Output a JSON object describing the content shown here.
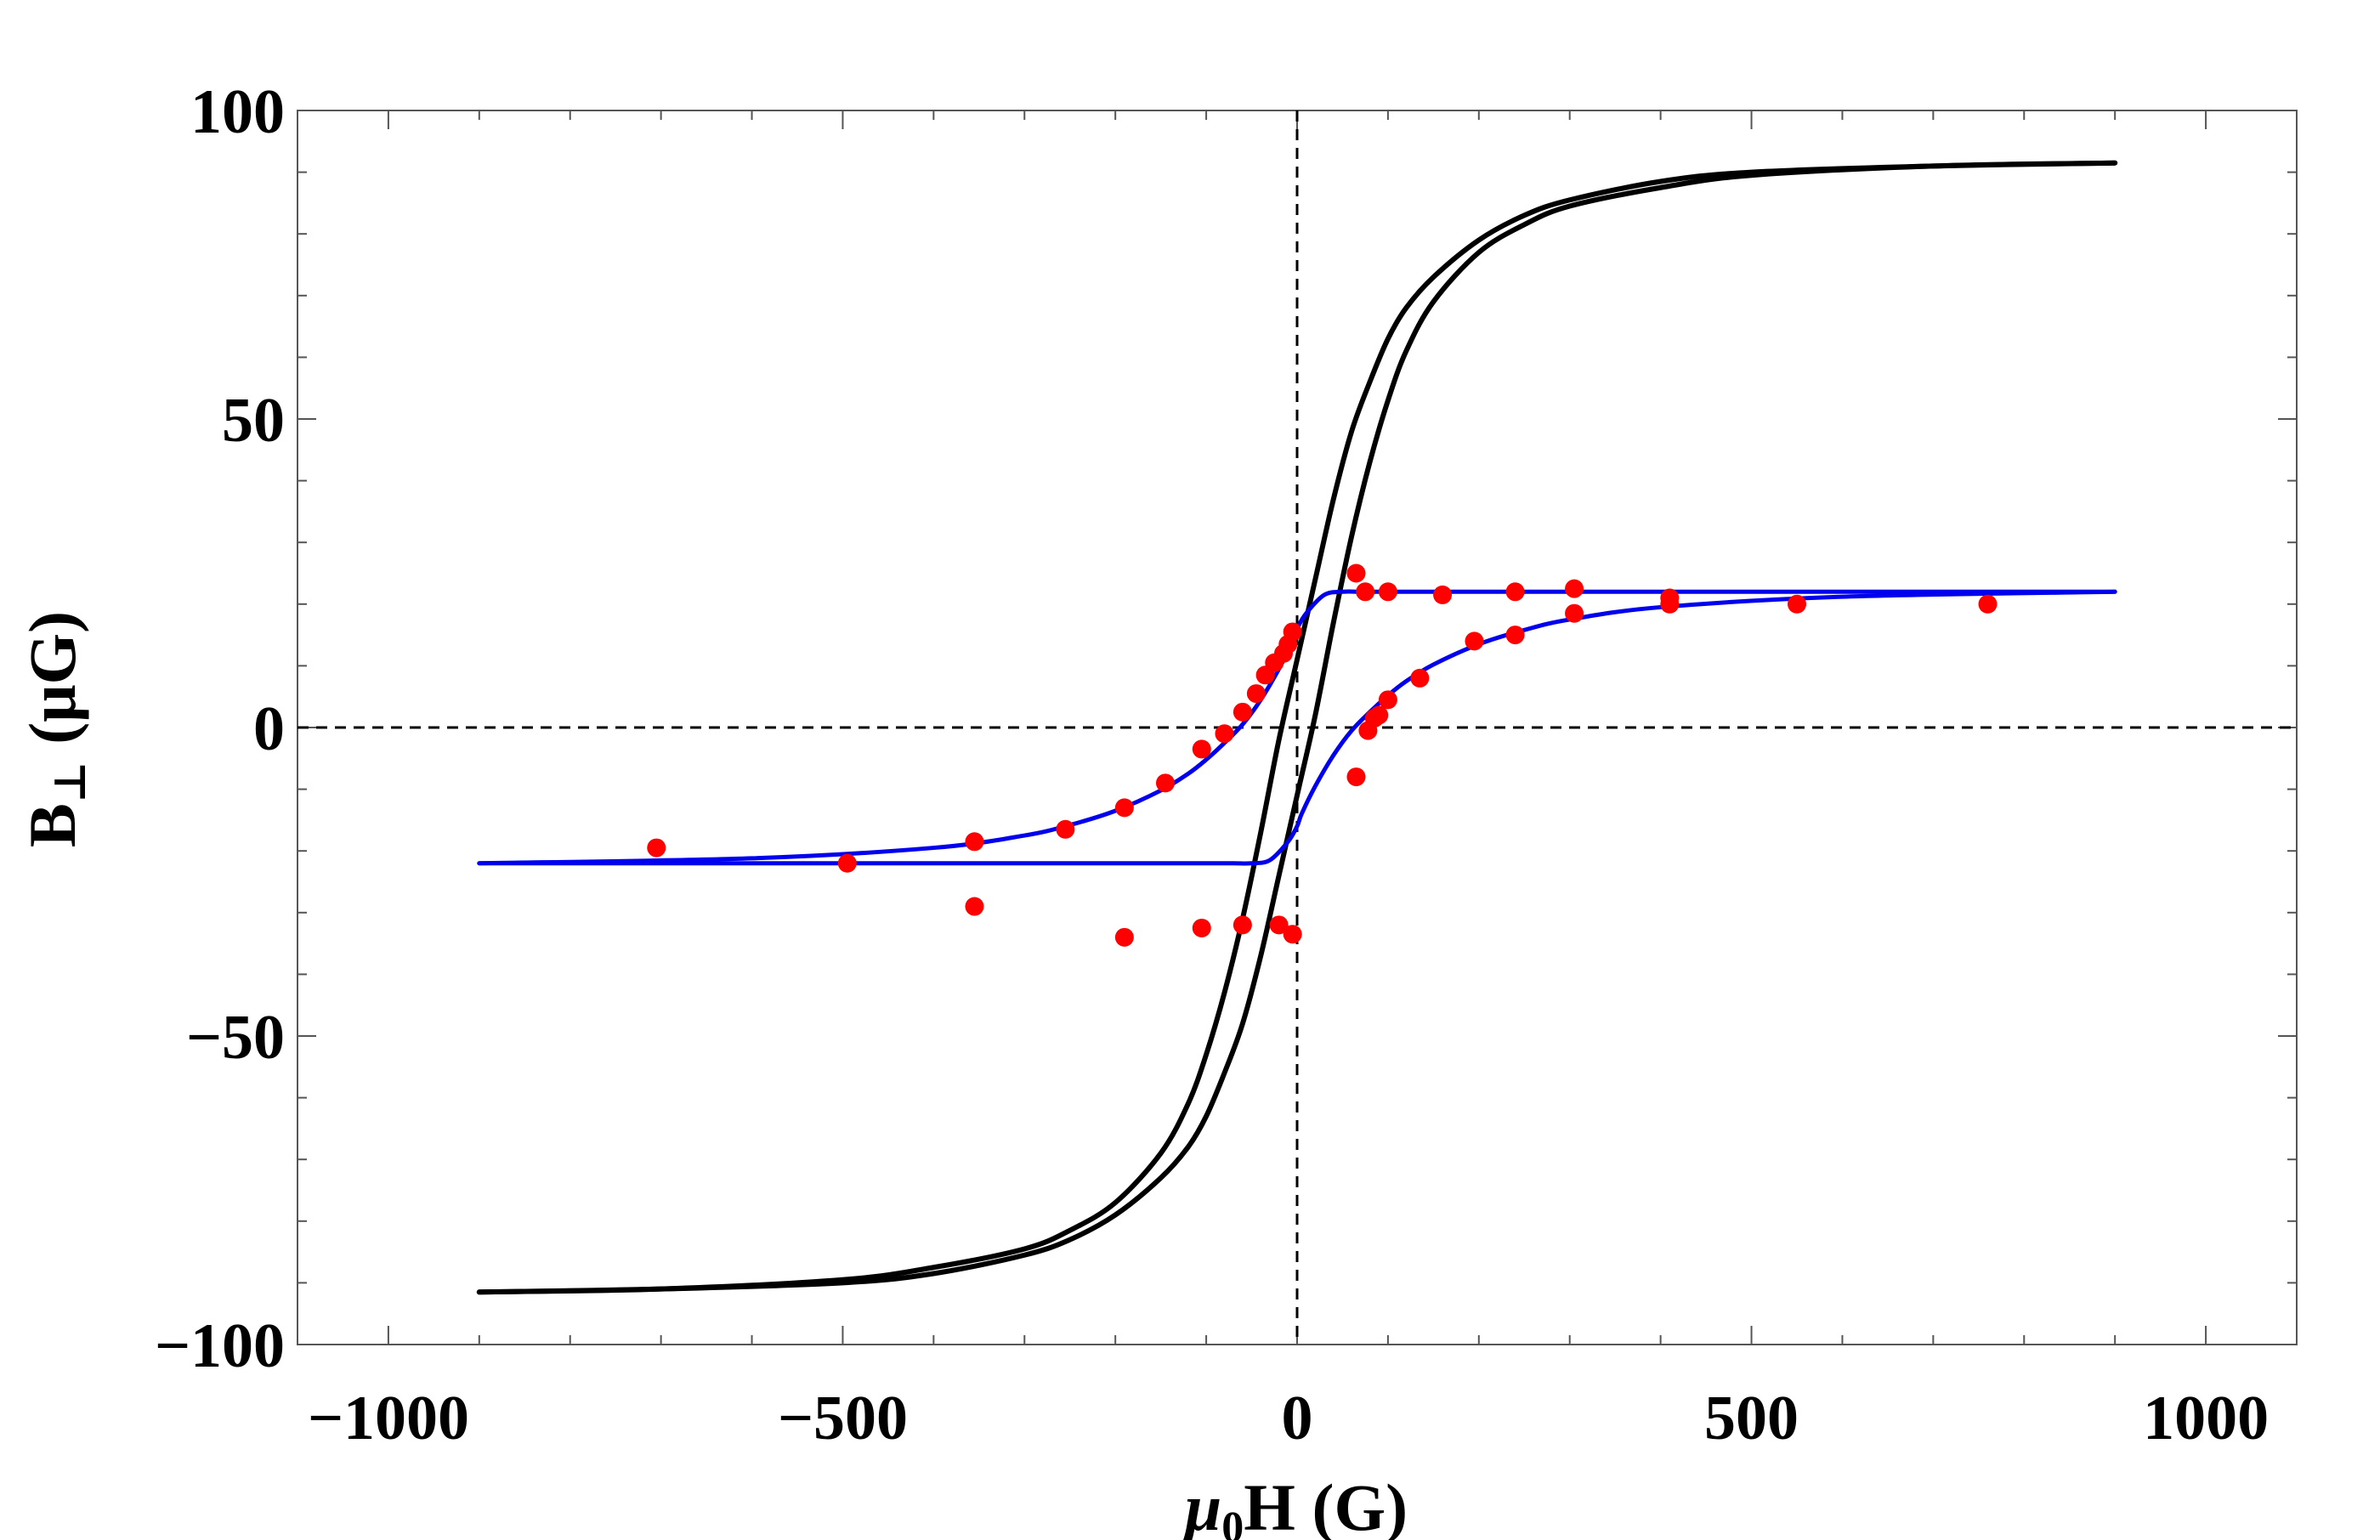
{
  "chart_data": {
    "type": "scatter",
    "title": "",
    "xlabel": {
      "prefix": "μ",
      "sub": "0",
      "suffix": "H (G)"
    },
    "ylabel": {
      "prefix": "B",
      "sub": "⊥",
      "suffix": " (μG)"
    },
    "xlim": [
      -1100,
      1100
    ],
    "ylim": [
      -100,
      100
    ],
    "x_ticks": [
      -1000,
      -500,
      0,
      500,
      1000
    ],
    "x_tick_labels": [
      "−1000",
      "−500",
      "0",
      "500",
      "1000"
    ],
    "y_ticks": [
      -100,
      -50,
      0,
      50,
      100
    ],
    "y_tick_labels": [
      "−100",
      "−50",
      "0",
      "50",
      "100"
    ],
    "reference_lines": {
      "x": 0,
      "y": 0,
      "style": "dashed"
    },
    "series": [
      {
        "name": "black loop (ascending branch)",
        "kind": "curve",
        "color": "#000000",
        "x": [
          -900,
          -700,
          -500,
          -400,
          -300,
          -250,
          -200,
          -150,
          -120,
          -100,
          -80,
          -60,
          -40,
          -20,
          0,
          20,
          40,
          60,
          80,
          100,
          120,
          150,
          200,
          250,
          300,
          400,
          500,
          700,
          900
        ],
        "y": [
          -91.5,
          -91.0,
          -90.0,
          -88.5,
          -85.5,
          -83,
          -79,
          -73,
          -68,
          -63,
          -56,
          -48,
          -37,
          -24,
          -11,
          2,
          17,
          31,
          43,
          53,
          61,
          69,
          77,
          81.5,
          84.5,
          87.5,
          89.5,
          91,
          91.5
        ]
      },
      {
        "name": "black loop (descending branch)",
        "kind": "curve",
        "color": "#000000",
        "x": [
          -900,
          -700,
          -500,
          -400,
          -300,
          -250,
          -200,
          -150,
          -120,
          -100,
          -80,
          -60,
          -40,
          -20,
          0,
          20,
          40,
          60,
          80,
          100,
          120,
          150,
          200,
          250,
          300,
          400,
          500,
          700,
          900
        ],
        "y": [
          -91.5,
          -91,
          -89.5,
          -87.5,
          -84.5,
          -81.5,
          -77,
          -69,
          -61,
          -53,
          -43,
          -31,
          -17,
          -2,
          11,
          24,
          37,
          48,
          56,
          63,
          68,
          73,
          79,
          83,
          85.5,
          88.5,
          90,
          91,
          91.5
        ]
      },
      {
        "name": "blue fit (lower branch)",
        "kind": "curve",
        "color": "#0000ee",
        "x": [
          -900,
          -600,
          -400,
          -300,
          -250,
          -200,
          -150,
          -120,
          -100,
          -80,
          -60,
          -40,
          -20,
          -5,
          0,
          10,
          30,
          50,
          70,
          100,
          130,
          160,
          200,
          250,
          300,
          400,
          500,
          700,
          900
        ],
        "y": [
          -22,
          -21.2,
          -19.5,
          -17.5,
          -15.8,
          -13.5,
          -10.2,
          -7.5,
          -5.2,
          -2.5,
          0.5,
          4.5,
          9.5,
          14,
          16,
          18.5,
          21.5,
          22,
          22,
          22,
          22,
          22,
          22,
          22,
          22,
          22,
          22,
          22,
          22
        ]
      },
      {
        "name": "blue fit (upper branch)",
        "kind": "curve",
        "color": "#0000ee",
        "x": [
          900,
          600,
          400,
          300,
          250,
          200,
          150,
          120,
          100,
          80,
          60,
          40,
          20,
          5,
          0,
          -10,
          -30,
          -50,
          -70,
          -100,
          -130,
          -160,
          -200,
          -250,
          -300,
          -400,
          -500,
          -700,
          -900
        ],
        "y": [
          22,
          21.2,
          19.5,
          17.5,
          15.8,
          13.5,
          10.2,
          7.5,
          5.2,
          2.5,
          -0.5,
          -4.5,
          -9.5,
          -14,
          -16,
          -18.5,
          -21.5,
          -22,
          -22,
          -22,
          -22,
          -22,
          -22,
          -22,
          -22,
          -22,
          -22,
          -22,
          -22
        ]
      },
      {
        "name": "measured data",
        "kind": "points",
        "color": "#ff0000",
        "x": [
          -705,
          -495,
          -355,
          -355,
          -255,
          -190,
          -190,
          -145,
          -105,
          -105,
          -80,
          -60,
          -60,
          -45,
          -35,
          -25,
          -15,
          -10,
          -5,
          -20,
          -5,
          65,
          75,
          100,
          160,
          240,
          305,
          410,
          410,
          305,
          240,
          195,
          135,
          100,
          90,
          85,
          78,
          65,
          550,
          760
        ],
        "y": [
          -19.5,
          -22,
          -18.5,
          -29,
          -16.5,
          -13,
          -34,
          -9,
          -3.5,
          -32.5,
          -1,
          2.5,
          -32,
          5.5,
          8.5,
          10.5,
          12,
          13.5,
          15.5,
          -32,
          -33.5,
          25,
          22,
          22,
          21.5,
          22,
          22.5,
          21,
          20,
          18.5,
          15,
          14,
          8,
          4.5,
          2,
          1.5,
          -0.5,
          -8,
          20,
          20
        ]
      }
    ]
  }
}
